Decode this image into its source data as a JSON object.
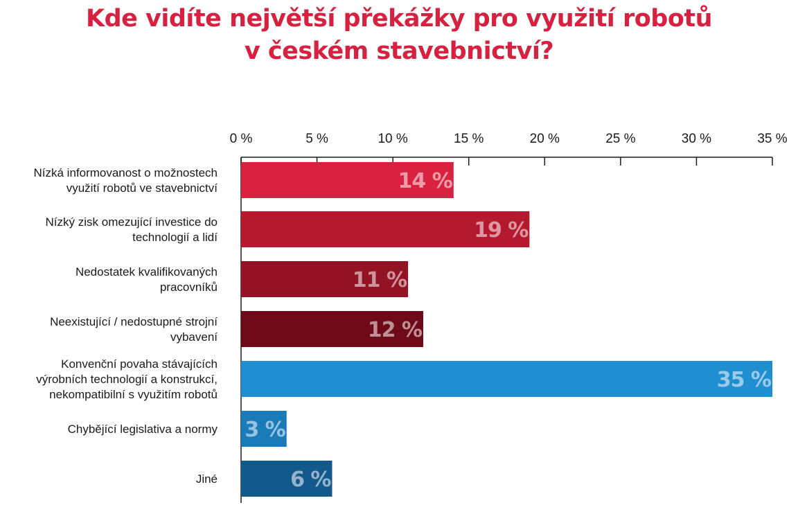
{
  "title_line1": "Kde vidíte největší překážky pro využití robotů",
  "title_line2": "v českém stavebnictví?",
  "chart_data": {
    "type": "bar",
    "orientation": "horizontal",
    "xlim": [
      0,
      35
    ],
    "ticks": [
      0,
      5,
      10,
      15,
      20,
      25,
      30,
      35
    ],
    "tick_labels": [
      "0 %",
      "5 %",
      "10 %",
      "15 %",
      "20 %",
      "25 %",
      "30 %",
      "35 %"
    ],
    "categories": [
      [
        "Nízká informovanost o možnostech",
        "využití robotů ve stavebnictví"
      ],
      [
        "Nízký zisk omezující investice do",
        "technologií a lidí"
      ],
      [
        "Nedostatek kvalifikovaných",
        "pracovníků"
      ],
      [
        "Neexistující / nedostupné strojní",
        "vybavení"
      ],
      [
        "Konvenční povaha stávajících",
        "výrobních technologií a konstrukcí,",
        "nekompatibilní s využitím robotů"
      ],
      [
        "Chybějící legislativa a normy"
      ],
      [
        "Jiné"
      ]
    ],
    "values": [
      14,
      19,
      11,
      12,
      35,
      3,
      6
    ],
    "data_labels": [
      "14 %",
      "19 %",
      "11 %",
      "12 %",
      "35 %",
      "3 %",
      "6 %"
    ],
    "colors": [
      "#d9223f",
      "#b5192f",
      "#931325",
      "#6e0a18",
      "#1f8fd0",
      "#1a7bb9",
      "#12598c"
    ],
    "grid": false,
    "legend": "none"
  }
}
